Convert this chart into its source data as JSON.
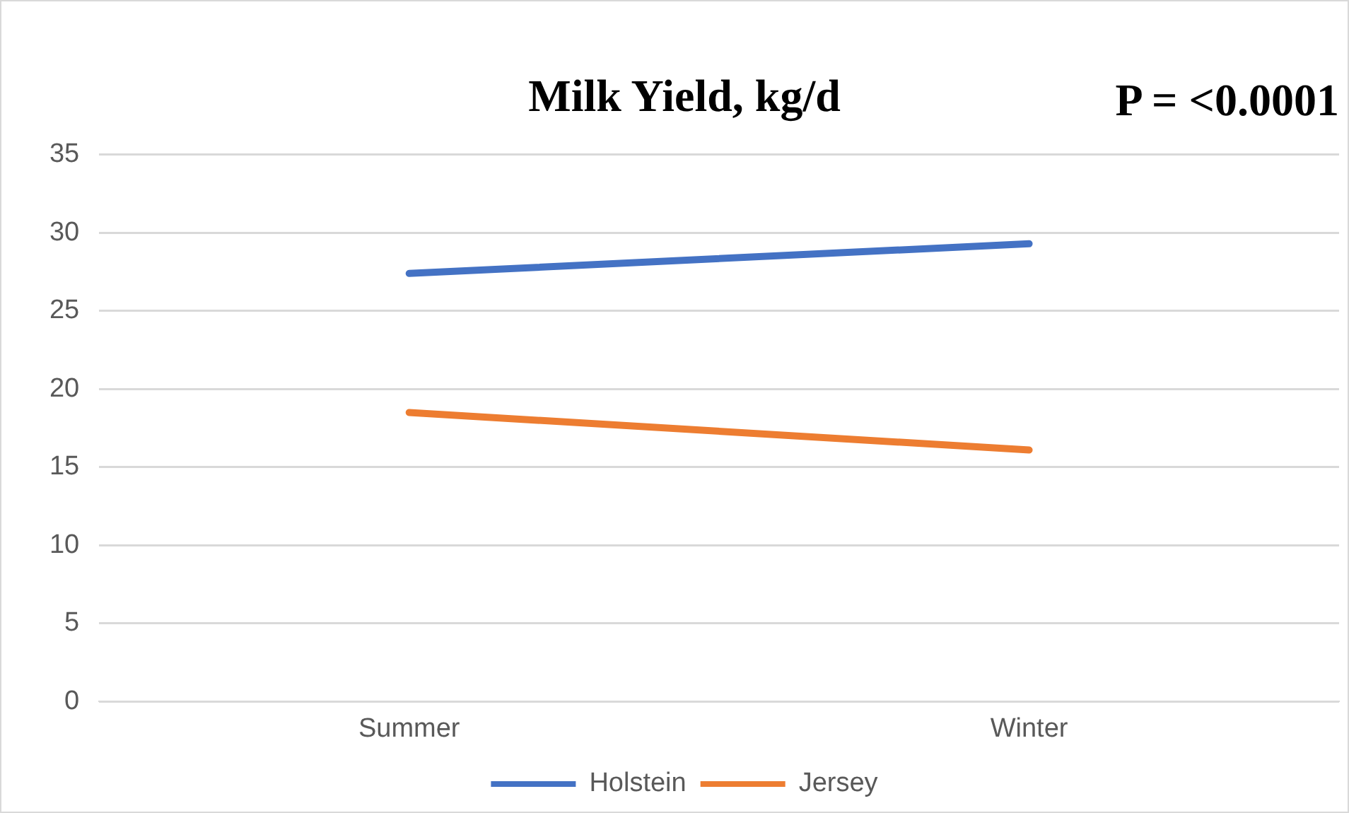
{
  "chart_data": {
    "type": "line",
    "title": "Milk Yield, kg/d",
    "annotations": [
      "P = <0.0001"
    ],
    "categories": [
      "Summer",
      "Winter"
    ],
    "series": [
      {
        "name": "Holstein",
        "color": "#4472c4",
        "values": [
          27.4,
          29.3
        ]
      },
      {
        "name": "Jersey",
        "color": "#ed7d31",
        "values": [
          18.5,
          16.1
        ]
      }
    ],
    "ylim": [
      0,
      35
    ],
    "yticks": [
      0,
      5,
      10,
      15,
      20,
      25,
      30,
      35
    ],
    "grid": "y",
    "legend": "bottom",
    "marker": "none",
    "line_style": "solid"
  }
}
